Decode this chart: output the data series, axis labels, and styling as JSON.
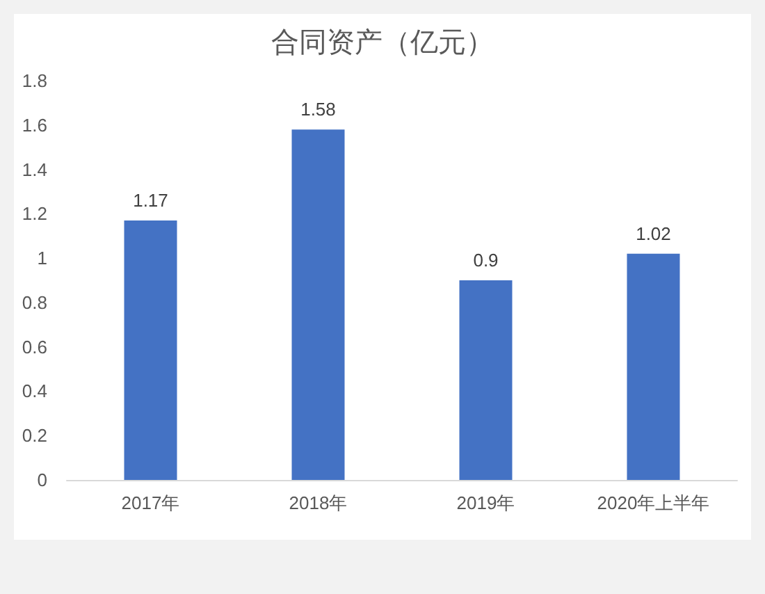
{
  "chart_data": {
    "type": "bar",
    "title": "合同资产（亿元）",
    "categories": [
      "2017年",
      "2018年",
      "2019年",
      "2020年上半年"
    ],
    "values": [
      1.17,
      1.58,
      0.9,
      1.02
    ],
    "color": "#4472c4",
    "ylim": [
      0,
      1.8
    ],
    "yticks": [
      0,
      0.2,
      0.4,
      0.6,
      0.8,
      1,
      1.2,
      1.4,
      1.6,
      1.8
    ],
    "data_labels": true
  }
}
